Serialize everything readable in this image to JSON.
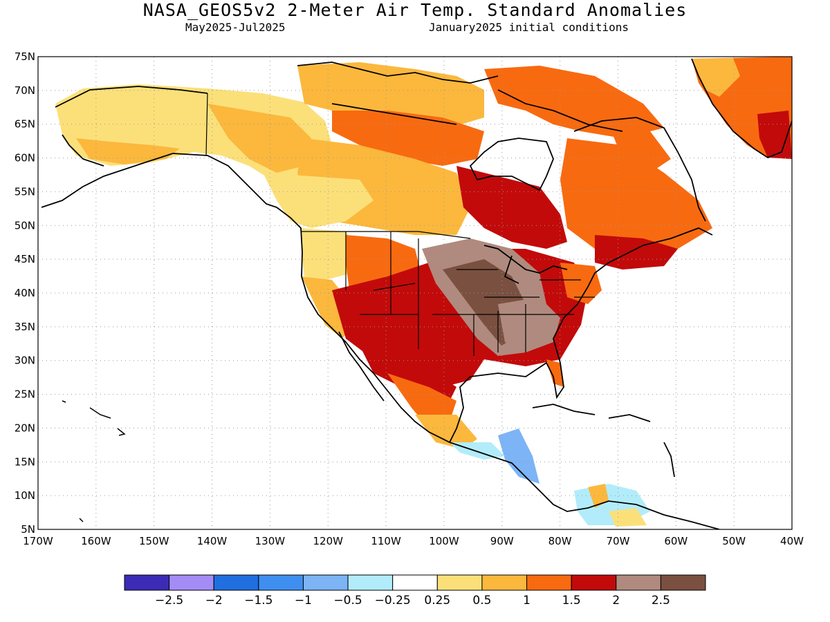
{
  "title": "NASA_GEOS5v2 2-Meter Air Temp. Standard Anomalies",
  "subtitle_left": "May2025-Jul2025",
  "subtitle_right": "January2025 initial conditions",
  "lat_labels": [
    "75N",
    "70N",
    "65N",
    "60N",
    "55N",
    "50N",
    "45N",
    "40N",
    "35N",
    "30N",
    "25N",
    "20N",
    "15N",
    "10N",
    "5N"
  ],
  "lon_labels": [
    "170W",
    "160W",
    "150W",
    "140W",
    "130W",
    "120W",
    "110W",
    "100W",
    "90W",
    "80W",
    "70W",
    "60W",
    "50W",
    "40W"
  ],
  "colorbar": {
    "colors": [
      "#3b2bb5",
      "#a48cf5",
      "#1f6fe0",
      "#3f8ff0",
      "#7cb4f6",
      "#b2ecfa",
      "#ffffff",
      "#fbe07a",
      "#fbb83d",
      "#f86a10",
      "#c20a0a",
      "#b08a7e",
      "#7a5040"
    ],
    "labels": [
      "−2.5",
      "−2",
      "−1.5",
      "−1",
      "−0.5",
      "−0.25",
      "0.25",
      "0.5",
      "1",
      "1.5",
      "2",
      "2.5"
    ]
  },
  "anomaly_palette": {
    "weak_positive": "#fbe07a",
    "moderate_positive": "#fbb83d",
    "strong_positive": "#f86a10",
    "very_strong_positive": "#c20a0a",
    "extreme_positive": "#b08a7e",
    "extreme_positive_max": "#7a5040",
    "weak_negative": "#b2ecfa",
    "moderate_negative": "#7cb4f6",
    "strong_negative": "#3f8ff0"
  },
  "icons": {
    "coastline": "coastline-outline",
    "grid": "dotted-gridlines"
  }
}
